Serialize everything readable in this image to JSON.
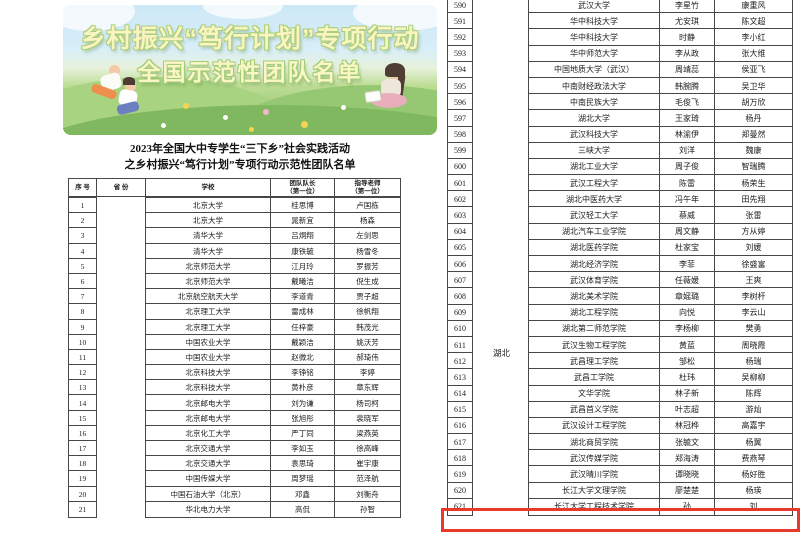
{
  "banner": {
    "line1": "乡村振兴“笃行计划”专项行动",
    "line2": "全国示范性团队名单"
  },
  "doc_title": {
    "line1": "2023年全国大中专学生“三下乡”社会实践活动",
    "line2": "之乡村振兴“笃行计划”专项行动示范性团队名单"
  },
  "table_headers": {
    "index": "序 号",
    "province": "省 份",
    "school": "学校",
    "leader": "团队队长\n（第一位）",
    "teacher": "指导老师\n（第一位）"
  },
  "left_table": {
    "province_label": "",
    "rows": [
      {
        "index": "1",
        "school": "北京大学",
        "leader": "桂思博",
        "teacher": "卢国栋"
      },
      {
        "index": "2",
        "school": "北京大学",
        "leader": "晁新宜",
        "teacher": "杨森"
      },
      {
        "index": "3",
        "school": "清华大学",
        "leader": "吕烔翔",
        "teacher": "左剑思"
      },
      {
        "index": "4",
        "school": "清华大学",
        "leader": "康铁毓",
        "teacher": "杨雪冬"
      },
      {
        "index": "5",
        "school": "北京师范大学",
        "leader": "江月玲",
        "teacher": "罗振芳"
      },
      {
        "index": "6",
        "school": "北京师范大学",
        "leader": "戴曦洁",
        "teacher": "倪生成"
      },
      {
        "index": "7",
        "school": "北京航空航天大学",
        "leader": "李道青",
        "teacher": "贾子超"
      },
      {
        "index": "8",
        "school": "北京理工大学",
        "leader": "雷成林",
        "teacher": "徐帆翔"
      },
      {
        "index": "9",
        "school": "北京理工大学",
        "leader": "任梓豪",
        "teacher": "韩茂光"
      },
      {
        "index": "10",
        "school": "中国农业大学",
        "leader": "戴颖洁",
        "teacher": "姚沃芳"
      },
      {
        "index": "11",
        "school": "中国农业大学",
        "leader": "赵微北",
        "teacher": "郝琦伟"
      },
      {
        "index": "12",
        "school": "北京科技大学",
        "leader": "李铮铭",
        "teacher": "李婷"
      },
      {
        "index": "13",
        "school": "北京科技大学",
        "leader": "黄朴彦",
        "teacher": "章东辉"
      },
      {
        "index": "14",
        "school": "北京邮电大学",
        "leader": "刘为谦",
        "teacher": "杨司柯"
      },
      {
        "index": "15",
        "school": "北京邮电大学",
        "leader": "张旭彤",
        "teacher": "裴晓军"
      },
      {
        "index": "16",
        "school": "北京化工大学",
        "leader": "严丁同",
        "teacher": "梁燕英"
      },
      {
        "index": "17",
        "school": "北京交通大学",
        "leader": "李如玉",
        "teacher": "徐高峰"
      },
      {
        "index": "18",
        "school": "北京交通大学",
        "leader": "袁思琦",
        "teacher": "崔宇康"
      },
      {
        "index": "19",
        "school": "中国传媒大学",
        "leader": "周梦瑶",
        "teacher": "范泽航"
      },
      {
        "index": "20",
        "school": "中国石油大学（北京）",
        "leader": "邓鑫",
        "teacher": "刘衡舟"
      },
      {
        "index": "21",
        "school": "华北电力大学",
        "leader": "高侃",
        "teacher": "孙智"
      }
    ]
  },
  "right_table": {
    "province_label": "湖北",
    "rows": [
      {
        "index": "590",
        "school": "武汉大学",
        "leader": "李星竹",
        "teacher": "康重风"
      },
      {
        "index": "591",
        "school": "华中科技大学",
        "leader": "尤安琪",
        "teacher": "陈文超"
      },
      {
        "index": "592",
        "school": "华中科技大学",
        "leader": "时静",
        "teacher": "李小红"
      },
      {
        "index": "593",
        "school": "华中师范大学",
        "leader": "李从政",
        "teacher": "张大维"
      },
      {
        "index": "594",
        "school": "中国地质大学（武汉）",
        "leader": "周靖蕊",
        "teacher": "侯亚飞"
      },
      {
        "index": "595",
        "school": "中南财经政法大学",
        "leader": "韩腕腾",
        "teacher": "吴卫华"
      },
      {
        "index": "596",
        "school": "中南民族大学",
        "leader": "毛俊飞",
        "teacher": "胡万欣"
      },
      {
        "index": "597",
        "school": "湖北大学",
        "leader": "王家琦",
        "teacher": "杨丹"
      },
      {
        "index": "598",
        "school": "武汉科技大学",
        "leader": "林渝伊",
        "teacher": "郑曼然"
      },
      {
        "index": "599",
        "school": "三峡大学",
        "leader": "刘洋",
        "teacher": "魏康"
      },
      {
        "index": "600",
        "school": "湖北工业大学",
        "leader": "周子俊",
        "teacher": "智瑞腾"
      },
      {
        "index": "601",
        "school": "武汉工程大学",
        "leader": "陈雷",
        "teacher": "杨荣生"
      },
      {
        "index": "602",
        "school": "湖北中医药大学",
        "leader": "冯午年",
        "teacher": "田先翔"
      },
      {
        "index": "603",
        "school": "武汉轻工大学",
        "leader": "蔡威",
        "teacher": "张雷"
      },
      {
        "index": "604",
        "school": "湖北汽车工业学院",
        "leader": "周文静",
        "teacher": "方从婷"
      },
      {
        "index": "605",
        "school": "湖北医药学院",
        "leader": "杜家宝",
        "teacher": "刘媛"
      },
      {
        "index": "606",
        "school": "湖北经济学院",
        "leader": "李菲",
        "teacher": "徐盛富"
      },
      {
        "index": "607",
        "school": "武汉体育学院",
        "leader": "任薇媛",
        "teacher": "王爽"
      },
      {
        "index": "608",
        "school": "湖北美术学院",
        "leader": "章媱璐",
        "teacher": "李树杆"
      },
      {
        "index": "609",
        "school": "湖北工程学院",
        "leader": "向悦",
        "teacher": "李云山"
      },
      {
        "index": "610",
        "school": "湖北第二师范学院",
        "leader": "李杨柳",
        "teacher": "樊勇"
      },
      {
        "index": "611",
        "school": "武汉生物工程学院",
        "leader": "黄蓝",
        "teacher": "周晓霞"
      },
      {
        "index": "612",
        "school": "武昌理工学院",
        "leader": "邹松",
        "teacher": "杨瑞"
      },
      {
        "index": "613",
        "school": "武昌工学院",
        "leader": "杜玮",
        "teacher": "吴柳柳"
      },
      {
        "index": "614",
        "school": "文华学院",
        "leader": "林子新",
        "teacher": "陈辉"
      },
      {
        "index": "615",
        "school": "武昌首义学院",
        "leader": "叶志超",
        "teacher": "游灿"
      },
      {
        "index": "616",
        "school": "武汉设计工程学院",
        "leader": "林冠桦",
        "teacher": "高嘉宇"
      },
      {
        "index": "617",
        "school": "湖北商贸学院",
        "leader": "张毓文",
        "teacher": "杨翼"
      },
      {
        "index": "618",
        "school": "武汉传媒学院",
        "leader": "郑海涛",
        "teacher": "费燕琴"
      },
      {
        "index": "619",
        "school": "武汉晴川学院",
        "leader": "谭晓晓",
        "teacher": "杨好胜"
      },
      {
        "index": "620",
        "school": "长江大学文理学院",
        "leader": "廖楚楚",
        "teacher": "杨瑛"
      },
      {
        "index": "621",
        "school": "长江大学工程技术学院",
        "leader": "孙",
        "teacher": "刘"
      }
    ]
  },
  "highlight": {
    "row_index": "620",
    "color": "#e8392c"
  }
}
